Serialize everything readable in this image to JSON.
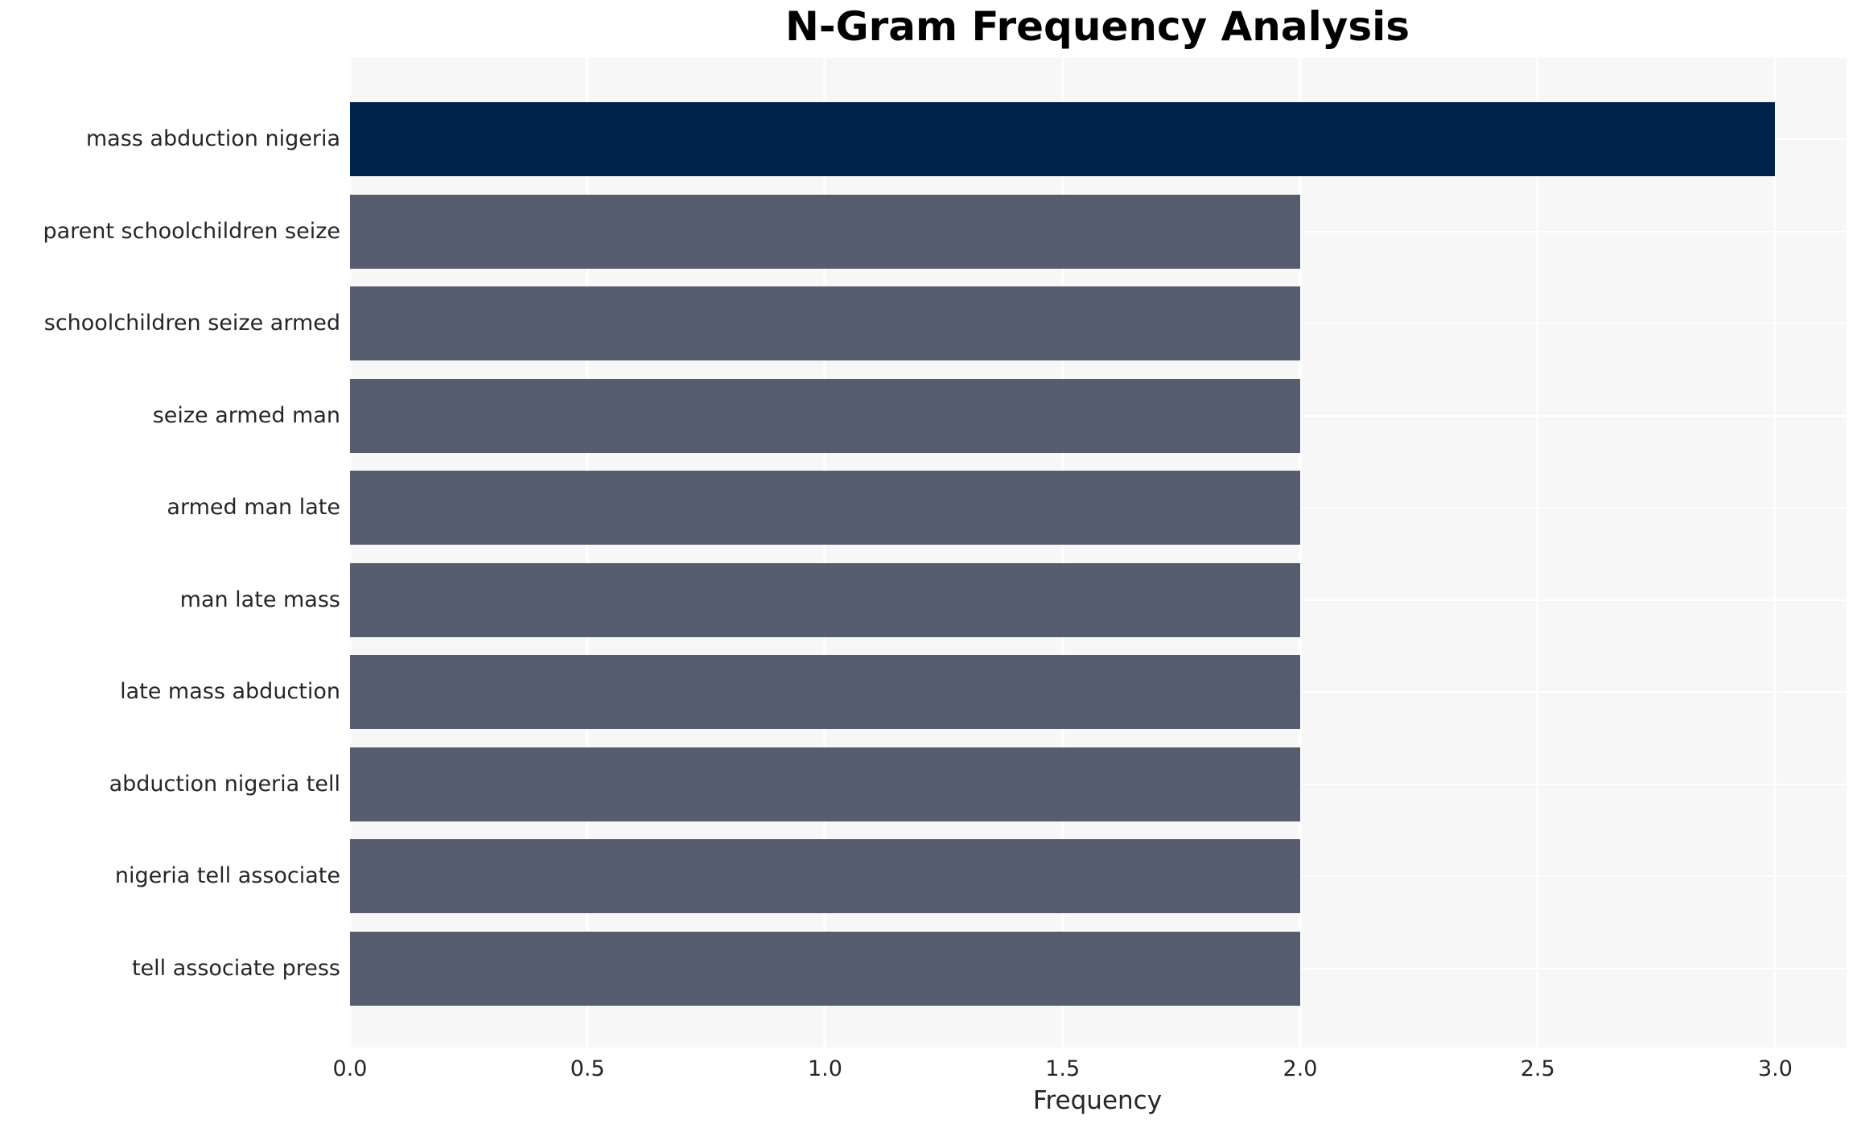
{
  "title": "N-Gram Frequency Analysis",
  "xlabel": "Frequency",
  "colors": {
    "highlight_bar": "#00234e",
    "default_bar": "#565d6e",
    "plot_background": "#f7f7f7",
    "gridline": "#ffffff",
    "tick_text": "#262626",
    "title_text": "#000000",
    "page_background": "#ffffff"
  },
  "chart_data": {
    "type": "bar",
    "orientation": "horizontal",
    "title": "N-Gram Frequency Analysis",
    "xlabel": "Frequency",
    "ylabel": "",
    "categories": [
      "mass abduction nigeria",
      "parent schoolchildren seize",
      "schoolchildren seize armed",
      "seize armed man",
      "armed man late",
      "man late mass",
      "late mass abduction",
      "abduction nigeria tell",
      "nigeria tell associate",
      "tell associate press"
    ],
    "values": [
      3,
      2,
      2,
      2,
      2,
      2,
      2,
      2,
      2,
      2
    ],
    "bar_colors": [
      "#00234e",
      "#565d6e",
      "#565d6e",
      "#565d6e",
      "#565d6e",
      "#565d6e",
      "#565d6e",
      "#565d6e",
      "#565d6e",
      "#565d6e"
    ],
    "x_tick_labels": [
      "0.0",
      "0.5",
      "1.0",
      "1.5",
      "2.0",
      "2.5",
      "3.0"
    ],
    "x_tick_values": [
      0,
      0.5,
      1,
      1.5,
      2,
      2.5,
      3
    ],
    "xlim": [
      0,
      3.15
    ],
    "grid": true,
    "legend": false
  }
}
